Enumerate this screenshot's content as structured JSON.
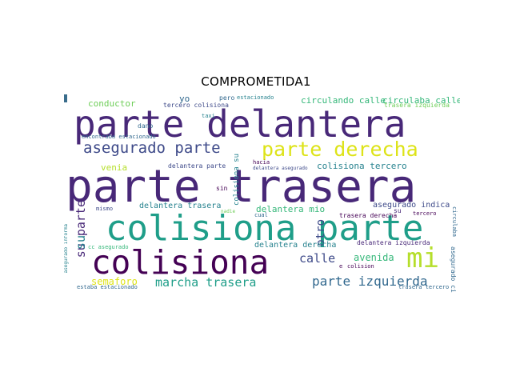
{
  "title": "COMPROMETIDA1",
  "words": {
    "w01": "parte delantera",
    "w02": "parte trasera",
    "w03": "colisiona parte",
    "w04": "colisiona",
    "w05": "asegurado parte",
    "w06": "parte derecha",
    "w07": "mi",
    "w08": "marcha trasera",
    "w09": "parte izquierda",
    "w10": "conductor",
    "w11": "yo",
    "w12": "tercero colisiona",
    "w13": "pero",
    "w14": "estacionado",
    "w15": "circulando calle",
    "w16": "circulaba calle",
    "w17": "trasera izquierda",
    "w18": "dano",
    "w19": "taxi",
    "w20": "encontraba estacionado",
    "w21": "venia",
    "w22": "delantera parte",
    "w23": "colisiona su",
    "w24": "hacia",
    "w25": "delantera asegurado",
    "w26": "colisiona tercero",
    "w27": "sin",
    "w28": "su parte",
    "w29": "mismo",
    "w30": "nadie",
    "w31": "delantera trasera",
    "w32": "delantera mio",
    "w33": "asegurado indica",
    "w34": "su",
    "w35": "cual",
    "w36": "trasera derecha",
    "w37": "tercero",
    "w38": "circulaba",
    "w39": "asegurado informa",
    "w40": "otro",
    "w41": "delantera izquierda",
    "w42": "cc asegurado",
    "w43": "delantera derecha",
    "w44": "calle",
    "w45": "avenida",
    "w46": "e",
    "w47": "colision",
    "w48": "asegurado circula",
    "w49": "semaforo",
    "w50": "estaba estacionado",
    "w51": "trasera tercero",
    "w52": "su"
  },
  "colors": {
    "dark_purple": "#440154",
    "purple": "#482878",
    "indigo": "#3e4a89",
    "blue": "#31688e",
    "teal": "#26828e",
    "green_teal": "#1f9e89",
    "green": "#35b779",
    "light_green": "#6ece58",
    "lime": "#b5de2b",
    "yellow": "#dde318"
  }
}
